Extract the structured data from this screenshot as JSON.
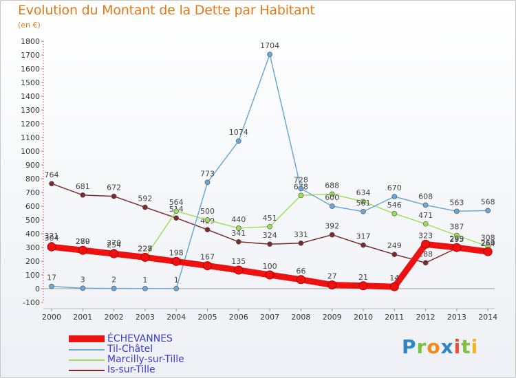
{
  "chart_data": {
    "type": "line",
    "title": "Evolution du Montant de la Dette par Habitant",
    "subtitle": "(en €)",
    "x": [
      "2000",
      "2001",
      "2002",
      "2003",
      "2004",
      "2005",
      "2006",
      "2007",
      "2008",
      "2009",
      "2010",
      "2011",
      "2012",
      "2013",
      "2014"
    ],
    "ylim": [
      -100,
      1800
    ],
    "yticks": [
      -100,
      0,
      100,
      200,
      300,
      400,
      500,
      600,
      700,
      800,
      900,
      1000,
      1100,
      1200,
      1300,
      1400,
      1500,
      1600,
      1700,
      1800
    ],
    "grid": false,
    "legend_position": "bottom-left",
    "series": [
      {
        "name": "ÉCHEVANNES",
        "color": "#ee1111",
        "values": [
          304,
          279,
          254,
          228,
          198,
          167,
          135,
          100,
          66,
          27,
          21,
          14,
          323,
          299,
          269
        ]
      },
      {
        "name": "Til-Châtel",
        "color": "#6aa8d8",
        "values": [
          17,
          3,
          2,
          1,
          1,
          773,
          1074,
          1704,
          728,
          600,
          561,
          670,
          608,
          563,
          568
        ]
      },
      {
        "name": "Marcilly-sur-Tille",
        "color": "#9ee05a",
        "values": [
          321,
          280,
          270,
          227,
          564,
          500,
          440,
          451,
          678,
          688,
          634,
          546,
          471,
          387,
          308
        ]
      },
      {
        "name": "Is-sur-Tille",
        "color": "#7a2a2a",
        "values": [
          764,
          681,
          672,
          592,
          514,
          429,
          341,
          324,
          331,
          392,
          317,
          249,
          188,
          295,
          264
        ]
      }
    ]
  },
  "branding": {
    "logo_letters": [
      "P",
      "r",
      "o",
      "x",
      "i",
      "t",
      "i"
    ]
  }
}
